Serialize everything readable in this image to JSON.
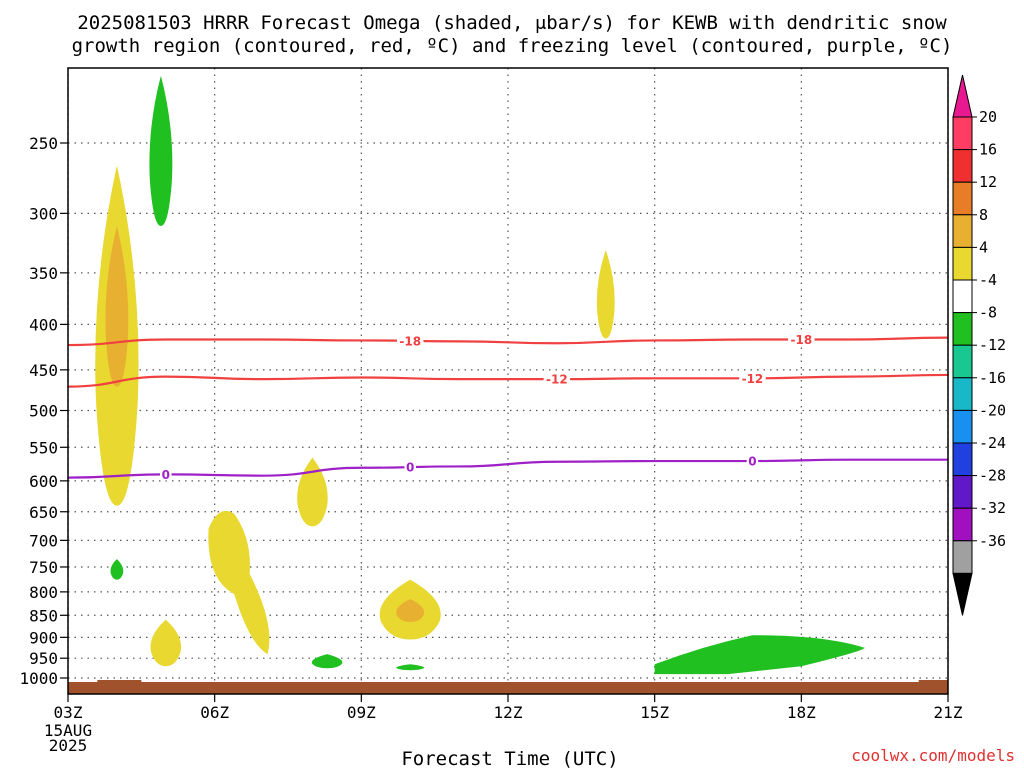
{
  "title": {
    "line1": "2025081503 HRRR Forecast Omega (shaded, μbar/s) for KEWB with dendritic snow",
    "line2": "growth region (contoured, red, ºC) and freezing level (contoured, purple, ºC)"
  },
  "credit": "coolwx.com/models",
  "chart_data": {
    "type": "heatmap",
    "title": "2025081503 HRRR Forecast Omega (shaded, μbar/s) for KEWB with dendritic snow growth region (contoured, red, ºC) and freezing level (contoured, purple, ºC)",
    "xlabel": "Forecast Time (UTC)",
    "ylabel": "",
    "x_ticks": [
      "03Z",
      "06Z",
      "09Z",
      "12Z",
      "15Z",
      "18Z",
      "21Z"
    ],
    "x_tick_hours": [
      3,
      6,
      9,
      12,
      15,
      18,
      21
    ],
    "x_sublabels": [
      "15AUG",
      "2025"
    ],
    "xlim": [
      3,
      21
    ],
    "y_ticks": [
      250,
      300,
      350,
      400,
      450,
      500,
      550,
      600,
      650,
      700,
      750,
      800,
      850,
      900,
      950,
      1000
    ],
    "ylim": [
      200,
      1025
    ],
    "y_scale": "log-pressure",
    "grid": true,
    "colorbar": {
      "labels": [
        "20",
        "16",
        "12",
        "8",
        "4",
        "-4",
        "-8",
        "-12",
        "-16",
        "-20",
        "-24",
        "-28",
        "-32",
        "-36"
      ],
      "colors": [
        "#ff3c64",
        "#f03030",
        "#e87d28",
        "#e8b030",
        "#e8d830",
        "#ffffff",
        "#20c020",
        "#18c890",
        "#18b8c8",
        "#1890f0",
        "#2040e0",
        "#6018c8",
        "#a010c0",
        "#a0a0a0"
      ],
      "top_arrow_color": "#e81890",
      "bottom_arrow_color": "#000000"
    },
    "shaded_regions": [
      {
        "category": "4 to 8",
        "color": "#e8d830",
        "hour": 4.0,
        "top_hpa": 265,
        "bottom_hpa": 640
      },
      {
        "category": "8 to 12",
        "color": "#e8b030",
        "hour": 4.0,
        "top_hpa": 310,
        "bottom_hpa": 470
      },
      {
        "category": "4 to 8",
        "color": "#e8d830",
        "hour": 5.0,
        "top_hpa": 860,
        "bottom_hpa": 970
      },
      {
        "category": "4 to 8",
        "color": "#e8d830",
        "hour": 6.4,
        "top_hpa": 645,
        "bottom_hpa": 940
      },
      {
        "category": "4 to 8",
        "color": "#e8d830",
        "hour": 8.0,
        "top_hpa": 565,
        "bottom_hpa": 675
      },
      {
        "category": "4 to 8",
        "color": "#e8d830",
        "hour": 10.0,
        "top_hpa": 775,
        "bottom_hpa": 905
      },
      {
        "category": "8 to 12",
        "color": "#e8b030",
        "hour": 10.0,
        "top_hpa": 815,
        "bottom_hpa": 865
      },
      {
        "category": "4 to 8",
        "color": "#e8d830",
        "hour": 14.0,
        "top_hpa": 330,
        "bottom_hpa": 415
      },
      {
        "category": "-4 to -8",
        "color": "#20c020",
        "hour": 4.9,
        "top_hpa": 210,
        "bottom_hpa": 310
      },
      {
        "category": "-4 to -8",
        "color": "#20c020",
        "hour": 4.0,
        "top_hpa": 735,
        "bottom_hpa": 775
      },
      {
        "category": "-4 to -8",
        "color": "#20c020",
        "hour": 8.3,
        "top_hpa": 940,
        "bottom_hpa": 975
      },
      {
        "category": "-4 to -8",
        "color": "#20c020",
        "hour": 10.0,
        "top_hpa": 965,
        "bottom_hpa": 980
      },
      {
        "category": "-4 to -8",
        "color": "#20c020",
        "hour": 17.0,
        "top_hpa": 895,
        "bottom_hpa": 990
      }
    ],
    "contours": [
      {
        "label": "-18",
        "color": "#f04040",
        "hours": [
          3,
          5,
          7,
          9,
          11,
          13,
          15,
          17,
          19,
          21
        ],
        "hpa": [
          422,
          416,
          416,
          417,
          418,
          420,
          417,
          416,
          416,
          414
        ],
        "label_hours": [
          10,
          18
        ]
      },
      {
        "label": "-12",
        "color": "#f04040",
        "hours": [
          3,
          5,
          7,
          9,
          11,
          13,
          15,
          17,
          19,
          21
        ],
        "hpa": [
          470,
          458,
          461,
          459,
          461,
          461,
          460,
          460,
          458,
          456
        ],
        "label_hours": [
          13,
          17
        ]
      },
      {
        "label": "0",
        "color": "#a020c8",
        "hours": [
          3,
          5,
          7,
          9,
          11,
          13,
          15,
          17,
          19,
          21
        ],
        "hpa": [
          595,
          590,
          592,
          580,
          578,
          571,
          570,
          570,
          568,
          568
        ],
        "label_hours": [
          5,
          10,
          17
        ]
      }
    ],
    "terrain_color": "#a0522d"
  }
}
